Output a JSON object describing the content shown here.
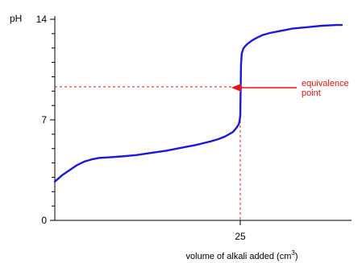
{
  "chart_data": {
    "type": "line",
    "title": "",
    "ylabel": "pH",
    "xlabel_prefix": "volume of alkali added (cm",
    "xlabel_sup": "3",
    "xlabel_suffix": ")",
    "xlim": [
      0,
      40
    ],
    "ylim": [
      0,
      14
    ],
    "x_ticks": [
      {
        "value": 25,
        "label": "25"
      }
    ],
    "y_ticks": [
      {
        "value": 0,
        "label": "0"
      },
      {
        "value": 7,
        "label": "7"
      },
      {
        "value": 14,
        "label": "14"
      }
    ],
    "y_minor_tick_step": 1,
    "grid": false,
    "series": [
      {
        "color": "#1a1adf",
        "x": [
          0,
          1,
          2,
          3,
          4,
          5,
          6,
          7,
          9,
          11,
          13,
          15,
          17,
          19,
          21,
          22,
          23,
          24,
          24.5,
          24.8,
          24.9,
          25.0,
          25.05,
          25.1,
          25.2,
          25.4,
          25.7,
          26,
          26.5,
          27,
          28,
          29,
          30,
          31,
          32,
          34,
          36,
          38,
          38.7
        ],
        "y": [
          2.7,
          3.15,
          3.5,
          3.85,
          4.1,
          4.25,
          4.35,
          4.38,
          4.45,
          4.55,
          4.7,
          4.85,
          5.05,
          5.25,
          5.5,
          5.65,
          5.85,
          6.15,
          6.45,
          6.7,
          6.9,
          7.3,
          9.0,
          10.8,
          11.6,
          11.95,
          12.15,
          12.3,
          12.5,
          12.65,
          12.9,
          13.05,
          13.15,
          13.25,
          13.35,
          13.45,
          13.55,
          13.6,
          13.6
        ]
      }
    ],
    "annotations": {
      "equivalence_point": {
        "x": 25,
        "y": 9.3,
        "color": "#ee1111"
      },
      "label_lines": [
        "equivalence",
        "point"
      ]
    }
  }
}
